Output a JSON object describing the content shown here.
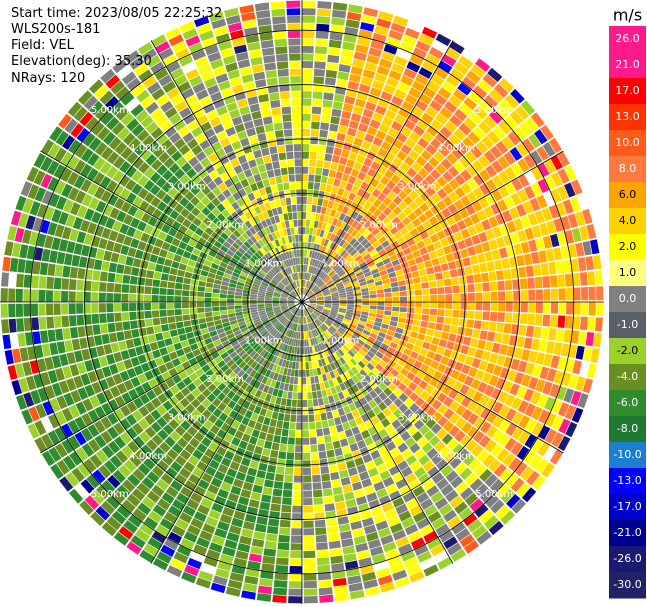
{
  "info": {
    "start_time": "Start time: 2023/08/05 22:25:32",
    "instrument": "WLS200s-181",
    "field": "Field: VEL",
    "elevation": "Elevation(deg): 35.30",
    "nrays": "NRays: 120"
  },
  "ppi": {
    "range_ring_km": [
      1,
      2,
      3,
      4,
      5
    ],
    "max_range_km": 5.0,
    "range_labels": [
      "1.00km",
      "2.00km",
      "3.00km",
      "4.00km",
      "5.00km"
    ],
    "nrays": 120
  },
  "colorbar": {
    "unit": "m/s",
    "ticks": [
      "26.0",
      "21.0",
      "17.0",
      "13.0",
      "10.0",
      "8.0",
      "6.0",
      "4.0",
      "2.0",
      "1.0",
      "0.0",
      "-1.0",
      "-2.0",
      "-4.0",
      "-6.0",
      "-8.0",
      "-10.0",
      "-13.0",
      "-17.0",
      "-21.0",
      "-26.0",
      "-30.0"
    ],
    "colors": [
      "#ff1a8c",
      "#ff1a8c",
      "#ff0000",
      "#ff3300",
      "#ff5a1a",
      "#ff7a3c",
      "#ffa500",
      "#ffd200",
      "#ffff00",
      "#ffff80",
      "#7f8080",
      "#5a6068",
      "#9bd12a",
      "#6b8e23",
      "#2e8b2e",
      "#1e7a30",
      "#1a7fd1",
      "#0000ff",
      "#0000c8",
      "#000090",
      "#1a1a70",
      "#222266"
    ]
  }
}
